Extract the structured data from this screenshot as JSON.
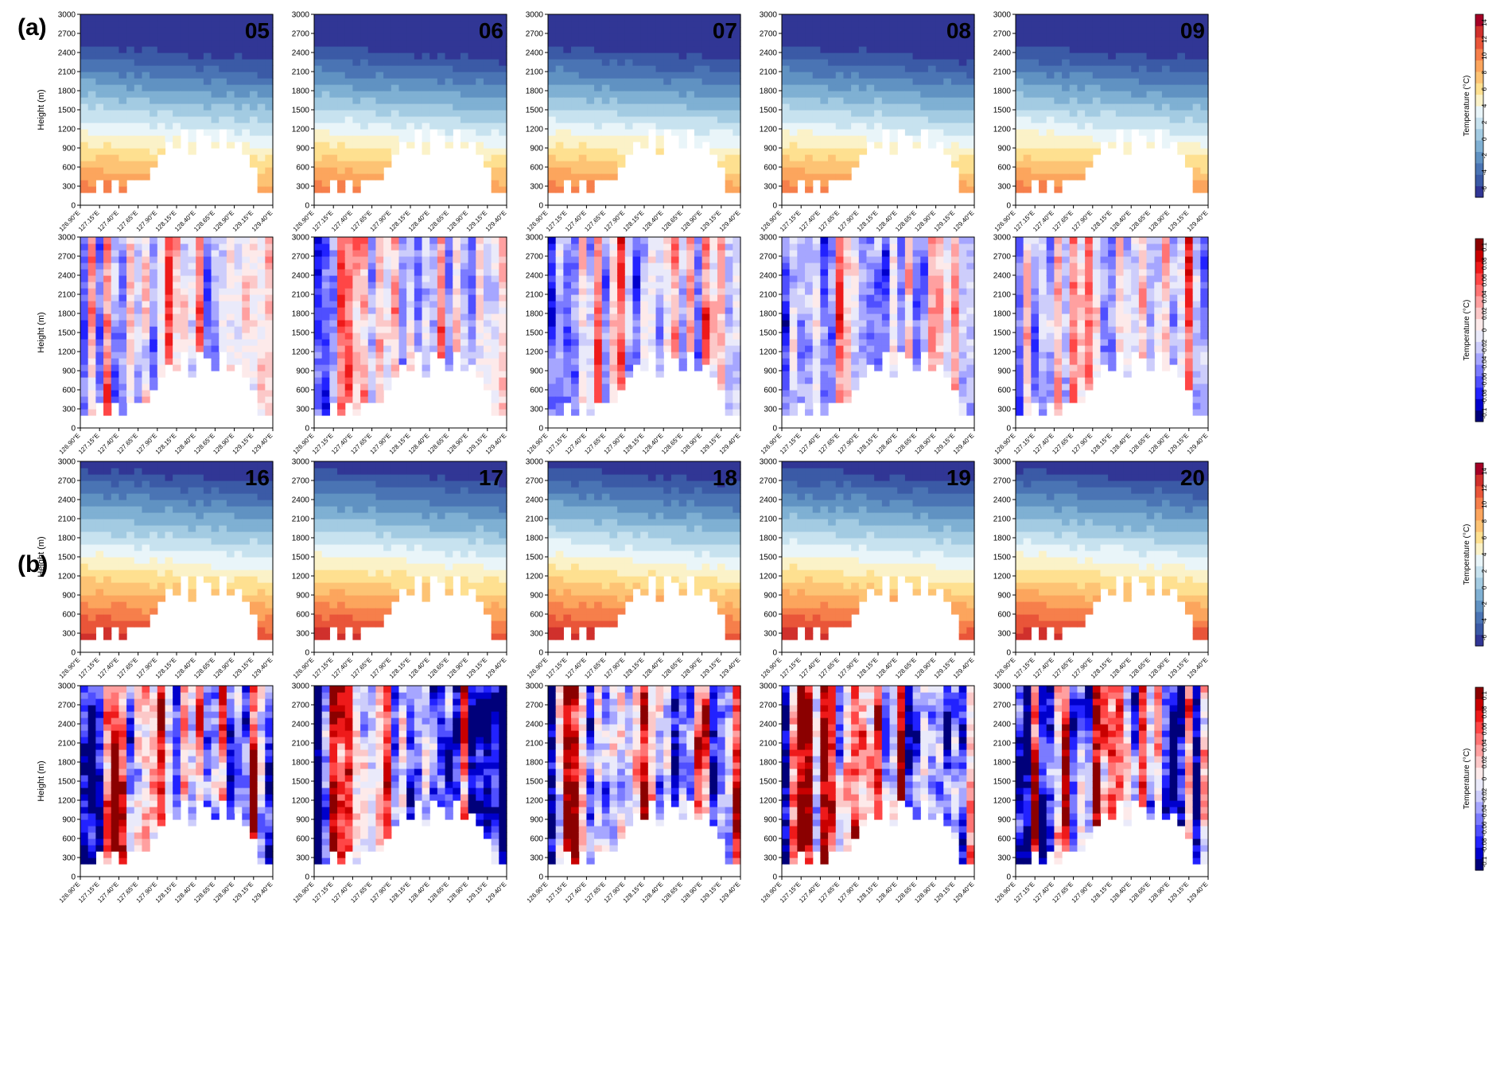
{
  "figure": {
    "panel_labels": [
      "(a)",
      "(b)"
    ]
  },
  "axes": {
    "ylabel": "Height  (m)",
    "yticks": [
      "0",
      "300",
      "600",
      "900",
      "1200",
      "1500",
      "1800",
      "2100",
      "2400",
      "2700",
      "3000"
    ],
    "xticks": [
      "126.90°E",
      "127.15°E",
      "127.40°E",
      "127.65°E",
      "127.90°E",
      "128.15°E",
      "128.40°E",
      "128.65°E",
      "128.90°E",
      "129.15°E",
      "129.40°E"
    ]
  },
  "colorbars": {
    "temperature": {
      "label": "Temperature (°C)",
      "ticks": [
        "-6",
        "-4",
        "-2",
        "0",
        "2",
        "4",
        "6",
        "8",
        "10",
        "12",
        "14"
      ],
      "colors": [
        "#313695",
        "#3b5aa6",
        "#4a74b4",
        "#6092c2",
        "#7fb0d3",
        "#a3cbe2",
        "#c7e2ef",
        "#e9f5f9",
        "#fbf2c8",
        "#fee090",
        "#fdc374",
        "#fca55d",
        "#f67f4b",
        "#e95539",
        "#d0302c",
        "#a50026"
      ]
    },
    "difference": {
      "label": "Temperature (°C)",
      "ticks": [
        "-0.1",
        "-0.08",
        "-0.06",
        "-0.04",
        "-0.02",
        "0",
        "0.02",
        "0.04",
        "0.06",
        "0.08",
        "0.1"
      ],
      "colors": [
        "#00007a",
        "#0000cc",
        "#2222ff",
        "#4f4fff",
        "#7b7bff",
        "#a6a6ff",
        "#cdcdfb",
        "#eaeafa",
        "#fdeaea",
        "#fcc8c8",
        "#ffa0a0",
        "#ff7474",
        "#ff4646",
        "#ee1a1a",
        "#c80000",
        "#8b0000"
      ]
    }
  },
  "chart_data": [
    {
      "type": "heatmap",
      "panel": "(a)",
      "title": "05",
      "variable": "temperature",
      "ylim": [
        0,
        3000
      ],
      "xlim": [
        "126.90°E",
        "129.40°E"
      ]
    },
    {
      "type": "heatmap",
      "panel": "(a)",
      "title": "06",
      "variable": "temperature",
      "ylim": [
        0,
        3000
      ],
      "xlim": [
        "126.90°E",
        "129.40°E"
      ]
    },
    {
      "type": "heatmap",
      "panel": "(a)",
      "title": "07",
      "variable": "temperature",
      "ylim": [
        0,
        3000
      ],
      "xlim": [
        "126.90°E",
        "129.40°E"
      ]
    },
    {
      "type": "heatmap",
      "panel": "(a)",
      "title": "08",
      "variable": "temperature",
      "ylim": [
        0,
        3000
      ],
      "xlim": [
        "126.90°E",
        "129.40°E"
      ]
    },
    {
      "type": "heatmap",
      "panel": "(a)",
      "title": "09",
      "variable": "temperature",
      "ylim": [
        0,
        3000
      ],
      "xlim": [
        "126.90°E",
        "129.40°E"
      ]
    },
    {
      "type": "heatmap",
      "panel": "(a)",
      "title": "",
      "variable": "difference",
      "ylim": [
        0,
        3000
      ],
      "xlim": [
        "126.90°E",
        "129.40°E"
      ]
    },
    {
      "type": "heatmap",
      "panel": "(a)",
      "title": "",
      "variable": "difference",
      "ylim": [
        0,
        3000
      ],
      "xlim": [
        "126.90°E",
        "129.40°E"
      ]
    },
    {
      "type": "heatmap",
      "panel": "(a)",
      "title": "",
      "variable": "difference",
      "ylim": [
        0,
        3000
      ],
      "xlim": [
        "126.90°E",
        "129.40°E"
      ]
    },
    {
      "type": "heatmap",
      "panel": "(a)",
      "title": "",
      "variable": "difference",
      "ylim": [
        0,
        3000
      ],
      "xlim": [
        "126.90°E",
        "129.40°E"
      ]
    },
    {
      "type": "heatmap",
      "panel": "(a)",
      "title": "",
      "variable": "difference",
      "ylim": [
        0,
        3000
      ],
      "xlim": [
        "126.90°E",
        "129.40°E"
      ]
    },
    {
      "type": "heatmap",
      "panel": "(b)",
      "title": "16",
      "variable": "temperature",
      "ylim": [
        0,
        3000
      ],
      "xlim": [
        "126.90°E",
        "129.40°E"
      ]
    },
    {
      "type": "heatmap",
      "panel": "(b)",
      "title": "17",
      "variable": "temperature",
      "ylim": [
        0,
        3000
      ],
      "xlim": [
        "126.90°E",
        "129.40°E"
      ]
    },
    {
      "type": "heatmap",
      "panel": "(b)",
      "title": "18",
      "variable": "temperature",
      "ylim": [
        0,
        3000
      ],
      "xlim": [
        "126.90°E",
        "129.40°E"
      ]
    },
    {
      "type": "heatmap",
      "panel": "(b)",
      "title": "19",
      "variable": "temperature",
      "ylim": [
        0,
        3000
      ],
      "xlim": [
        "126.90°E",
        "129.40°E"
      ]
    },
    {
      "type": "heatmap",
      "panel": "(b)",
      "title": "20",
      "variable": "temperature",
      "ylim": [
        0,
        3000
      ],
      "xlim": [
        "126.90°E",
        "129.40°E"
      ]
    },
    {
      "type": "heatmap",
      "panel": "(b)",
      "title": "",
      "variable": "difference",
      "ylim": [
        0,
        3000
      ],
      "xlim": [
        "126.90°E",
        "129.40°E"
      ]
    },
    {
      "type": "heatmap",
      "panel": "(b)",
      "title": "",
      "variable": "difference",
      "ylim": [
        0,
        3000
      ],
      "xlim": [
        "126.90°E",
        "129.40°E"
      ]
    },
    {
      "type": "heatmap",
      "panel": "(b)",
      "title": "",
      "variable": "difference",
      "ylim": [
        0,
        3000
      ],
      "xlim": [
        "126.90°E",
        "129.40°E"
      ]
    },
    {
      "type": "heatmap",
      "panel": "(b)",
      "title": "",
      "variable": "difference",
      "ylim": [
        0,
        3000
      ],
      "xlim": [
        "126.90°E",
        "129.40°E"
      ]
    },
    {
      "type": "heatmap",
      "panel": "(b)",
      "title": "",
      "variable": "difference",
      "ylim": [
        0,
        3000
      ],
      "xlim": [
        "126.90°E",
        "129.40°E"
      ]
    }
  ]
}
